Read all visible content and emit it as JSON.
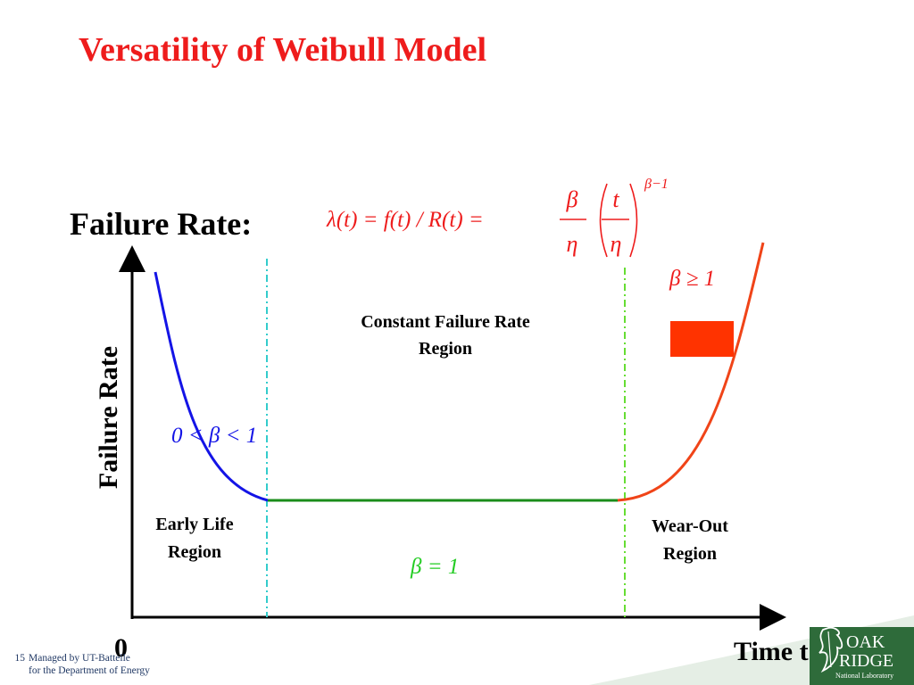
{
  "title": "Versatility of Weibull Model",
  "rate_heading": "Failure Rate:",
  "formula": {
    "lhs": "λ(t) = f(t) / R(t) =",
    "beta": "β",
    "eta": "η",
    "t": "t",
    "exponent": "β−1",
    "color": "#ee1c1c"
  },
  "y_axis_label": "Failure Rate",
  "x_axis_label": "Time t",
  "origin_label": "0",
  "regions": {
    "constant": [
      "Constant Failure Rate",
      "Region"
    ],
    "early": [
      "Early Life",
      "Region"
    ],
    "wearout": [
      "Wear-Out",
      "Region"
    ]
  },
  "beta_labels": {
    "early": "0 < β < 1",
    "constant": "β = 1",
    "wearout": "β ≥ 1"
  },
  "colors": {
    "title": "#ee1c1c",
    "early_curve": "#1414e6",
    "constant_curve": "#1a8c1a",
    "wearout_curve": "#f04418",
    "legend_swatch": "#ff3300",
    "divider_left": "#33cccc",
    "divider_right": "#66dd33",
    "early_beta_text": "#1414e6",
    "constant_beta_text": "#22cc22",
    "wearout_beta_text": "#ee1c1c",
    "footer_text": "#203864",
    "logo_green": "#2e6b3a"
  },
  "footer": {
    "page_number": "15",
    "line1": "Managed by UT-Battelle",
    "line2": "for the Department of Energy"
  },
  "logo": {
    "line1": "OAK",
    "line2": "RIDGE",
    "line3": "National Laboratory"
  }
}
